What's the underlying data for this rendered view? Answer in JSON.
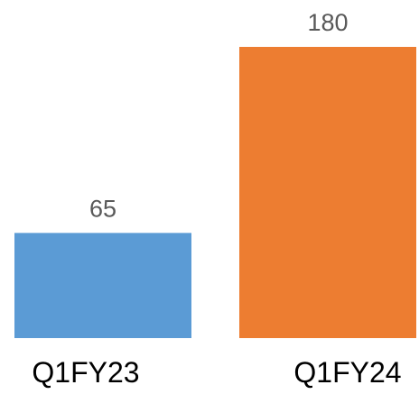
{
  "chart_data": {
    "type": "bar",
    "categories": [
      "Q1FY23",
      "Q1FY24"
    ],
    "values": [
      65,
      180
    ],
    "colors": [
      "#5b9bd5",
      "#ed7d31"
    ],
    "data_labels": [
      "65",
      "180"
    ],
    "ylim": [
      0,
      180
    ],
    "grid": false,
    "legend": "none"
  }
}
